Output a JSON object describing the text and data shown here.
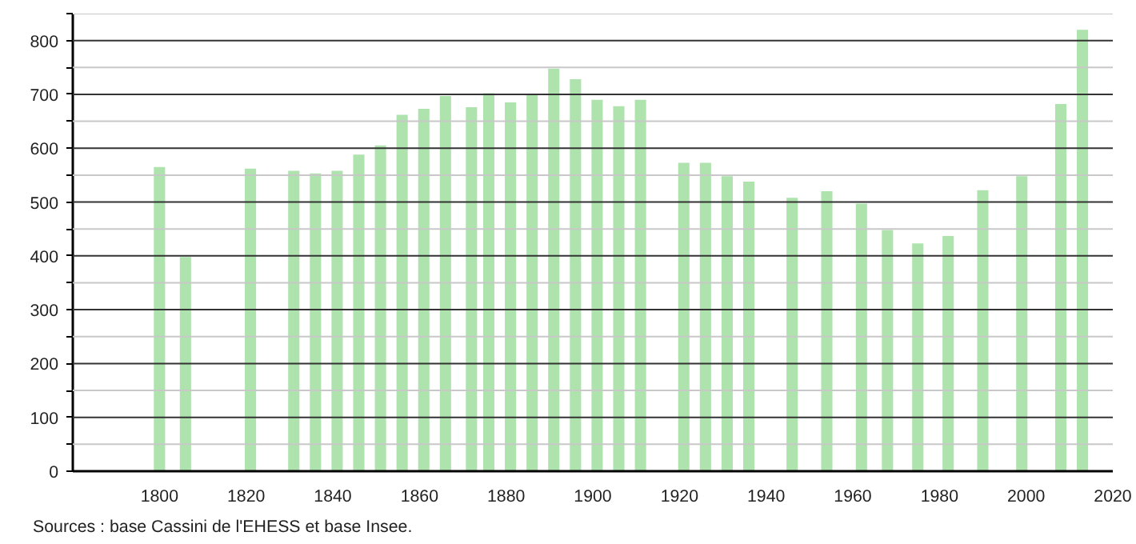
{
  "chart_data": {
    "type": "bar",
    "color": "#aee3ae",
    "x": [
      1800,
      1806,
      1821,
      1831,
      1836,
      1841,
      1846,
      1851,
      1856,
      1861,
      1866,
      1872,
      1876,
      1881,
      1886,
      1891,
      1896,
      1901,
      1906,
      1911,
      1921,
      1926,
      1931,
      1936,
      1946,
      1954,
      1962,
      1968,
      1975,
      1982,
      1990,
      1999,
      2008,
      2013
    ],
    "values": [
      565,
      398,
      562,
      558,
      553,
      558,
      588,
      605,
      662,
      673,
      697,
      676,
      702,
      685,
      700,
      748,
      728,
      690,
      678,
      690,
      573,
      573,
      548,
      538,
      508,
      520,
      497,
      448,
      423,
      437,
      522,
      548,
      682,
      820
    ],
    "xlim": [
      1780,
      2020
    ],
    "xticks": [
      1800,
      1820,
      1840,
      1860,
      1880,
      1900,
      1920,
      1940,
      1960,
      1980,
      2000,
      2020
    ],
    "ylim": [
      0,
      850
    ],
    "yticks": [
      0,
      {
        "value": 50,
        "label": null
      },
      100,
      {
        "value": 150,
        "label": null
      },
      200,
      {
        "value": 250,
        "label": null
      },
      300,
      {
        "value": 350,
        "label": null
      },
      400,
      {
        "value": 450,
        "label": null
      },
      500,
      {
        "value": 550,
        "label": null
      },
      600,
      {
        "value": 650,
        "label": null
      },
      700,
      {
        "value": 750,
        "label": null
      },
      800,
      {
        "value": 850,
        "label": null
      }
    ],
    "grid": "y",
    "annotations": [
      "Sources : base Cassini de l'EHESS et base Insee."
    ]
  }
}
